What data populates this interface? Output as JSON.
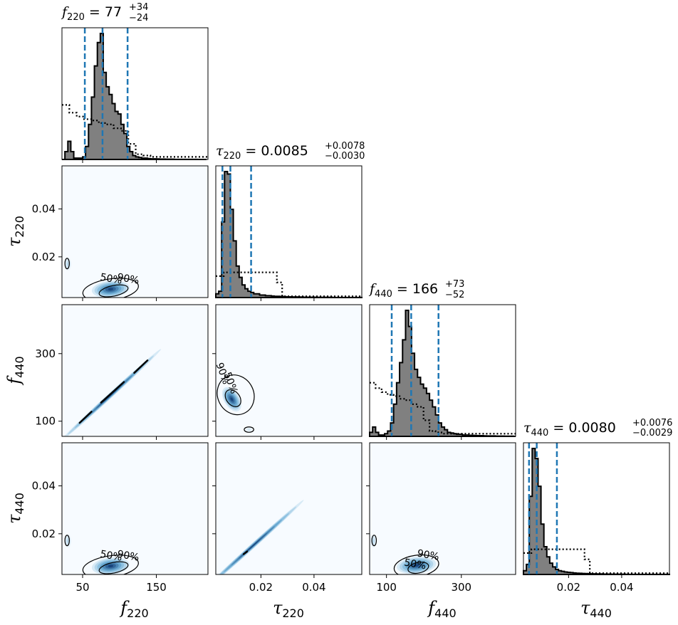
{
  "colors": {
    "hist_fill": "#808080",
    "hist_edge": "#000000",
    "quantile_line": "#1f77b4",
    "prior": "#000000",
    "density_low": "#f7fbff",
    "density_high": "#08306b"
  },
  "labels": {
    "f220": {
      "sym": "f",
      "sub": "220"
    },
    "tau220": {
      "sym": "τ",
      "sub": "220"
    },
    "f440": {
      "sym": "f",
      "sub": "440"
    },
    "tau440": {
      "sym": "τ",
      "sub": "440"
    }
  },
  "titles": {
    "f220": {
      "sym": "f",
      "sub": "220",
      "eq": " = ",
      "median": "77",
      "plus": "+34",
      "minus": "−24"
    },
    "tau220": {
      "sym": "τ",
      "sub": "220",
      "eq": " = ",
      "median": "0.0085",
      "plus": "+0.0078",
      "minus": "−0.0030"
    },
    "f440": {
      "sym": "f",
      "sub": "440",
      "eq": " = ",
      "median": "166",
      "plus": "+73",
      "minus": "−52"
    },
    "tau440": {
      "sym": "τ",
      "sub": "440",
      "eq": " = ",
      "median": "0.0080",
      "plus": "+0.0076",
      "minus": "−0.0029"
    }
  },
  "contour_levels": {
    "inner": "50%",
    "outer": "90%"
  },
  "chart_data": {
    "type": "corner",
    "parameters": [
      "f220",
      "tau220",
      "f440",
      "tau440"
    ],
    "ranges": {
      "f220": [
        22,
        220
      ],
      "tau220": [
        0.003,
        0.058
      ],
      "f440": [
        55,
        445
      ],
      "tau440": [
        0.003,
        0.058
      ]
    },
    "ticks": {
      "f220": [
        50,
        150
      ],
      "tau220": [
        0.02,
        0.04
      ],
      "f440": [
        100,
        300
      ],
      "tau440": [
        0.02,
        0.04
      ]
    },
    "tick_labels": {
      "f220": [
        "50",
        "150"
      ],
      "tau220": [
        "0.02",
        "0.04"
      ],
      "f440": [
        "100",
        "300"
      ],
      "tau440": [
        "0.02",
        "0.04"
      ]
    },
    "y_tick_labels": {
      "tau220": [
        "0.02",
        "0.04"
      ],
      "f440": [
        "100",
        "300"
      ],
      "tau440": [
        "0.02",
        "0.04"
      ]
    },
    "quantiles": {
      "f220": [
        53,
        77,
        111
      ],
      "tau220": [
        0.0055,
        0.0085,
        0.0163
      ],
      "f440": [
        114,
        166,
        239
      ],
      "tau440": [
        0.0051,
        0.008,
        0.0156
      ]
    },
    "histograms": {
      "f220": {
        "edges": [
          22,
          26,
          30,
          34,
          38,
          42,
          46,
          50,
          54,
          58,
          62,
          66,
          70,
          74,
          78,
          82,
          86,
          90,
          94,
          98,
          102,
          106,
          110,
          114,
          118,
          122,
          126,
          130,
          134,
          138,
          142,
          146,
          150,
          154,
          158,
          162,
          166,
          170,
          174,
          178,
          182,
          186,
          190,
          194,
          198,
          202,
          206,
          210,
          214,
          218
        ],
        "counts": [
          0,
          6,
          14,
          6,
          1,
          1,
          1,
          2,
          10,
          27,
          48,
          72,
          90,
          97,
          67,
          56,
          50,
          43,
          37,
          35,
          27,
          20,
          10,
          6,
          3,
          2,
          1.5,
          1,
          1,
          0.7,
          0.5,
          0.5,
          0.4,
          0.3,
          0.3,
          0.2,
          0.2,
          0.2,
          0.1,
          0.1,
          0.1,
          0.1,
          0.1,
          0.1,
          0.1,
          0.1,
          0,
          0,
          0
        ]
      },
      "tau220": {
        "edges": [
          0.003,
          0.0041,
          0.0052,
          0.0063,
          0.0074,
          0.0085,
          0.0096,
          0.0107,
          0.0118,
          0.0129,
          0.014,
          0.0151,
          0.0162,
          0.0173,
          0.0184,
          0.0195,
          0.0206,
          0.0217,
          0.0228,
          0.0239,
          0.025,
          0.0261,
          0.0272,
          0.0283,
          0.0294,
          0.0305,
          0.0316,
          0.0327,
          0.0338,
          0.0349,
          0.036,
          0.0371,
          0.0382,
          0.0393,
          0.0404,
          0.0415,
          0.0426,
          0.0437,
          0.0448,
          0.0459,
          0.047,
          0.0481,
          0.0492,
          0.0503,
          0.0514,
          0.0525,
          0.0536,
          0.0547,
          0.0558,
          0.058
        ],
        "counts": [
          3,
          5,
          60,
          100,
          98,
          70,
          45,
          25,
          16,
          10,
          7,
          5,
          4,
          3,
          3,
          2,
          2,
          1.5,
          1.5,
          1.2,
          1,
          1,
          0.8,
          0.8,
          0.6,
          0.6,
          0.5,
          0.5,
          0.4,
          0.4,
          0.3,
          0.3,
          0.3,
          0.3,
          0.2,
          0.2,
          0.2,
          0.2,
          0.2,
          0.2,
          0.1,
          0.1,
          0.1,
          0.1,
          0.1,
          0.1,
          0.1,
          0.1,
          0.1
        ]
      },
      "f440": {
        "edges": [
          55,
          63,
          71,
          79,
          87,
          95,
          103,
          111,
          119,
          127,
          135,
          143,
          151,
          159,
          167,
          175,
          183,
          191,
          199,
          207,
          215,
          223,
          231,
          239,
          247,
          255,
          263,
          271,
          279,
          287,
          295,
          303,
          311,
          319,
          327,
          335,
          343,
          351,
          359,
          367,
          375,
          383,
          391,
          399,
          407,
          415,
          423,
          431,
          439,
          445
        ],
        "counts": [
          3,
          7,
          3,
          1,
          1,
          2,
          4,
          10,
          24,
          40,
          55,
          72,
          94,
          82,
          62,
          50,
          44,
          39,
          36,
          32,
          27,
          22,
          16,
          10,
          7,
          5,
          3,
          2.5,
          2,
          1.5,
          1.5,
          1,
          1,
          0.8,
          0.7,
          0.6,
          0.5,
          0.5,
          0.4,
          0.3,
          0.3,
          0.3,
          0.2,
          0.2,
          0.2,
          0.1,
          0.1,
          0.1,
          0
        ]
      },
      "tau440": {
        "edges": [
          0.003,
          0.0041,
          0.0052,
          0.0063,
          0.0074,
          0.0085,
          0.0096,
          0.0107,
          0.0118,
          0.0129,
          0.014,
          0.0151,
          0.0162,
          0.0173,
          0.0184,
          0.0195,
          0.0206,
          0.0217,
          0.0228,
          0.0239,
          0.025,
          0.0261,
          0.0272,
          0.0283,
          0.0294,
          0.0305,
          0.0316,
          0.0327,
          0.0338,
          0.0349,
          0.036,
          0.0371,
          0.0382,
          0.0393,
          0.0404,
          0.0415,
          0.0426,
          0.0437,
          0.0448,
          0.0459,
          0.047,
          0.0481,
          0.0492,
          0.0503,
          0.0514,
          0.0525,
          0.0536,
          0.0547,
          0.0558,
          0.058
        ],
        "counts": [
          3,
          8,
          62,
          100,
          92,
          70,
          40,
          22,
          14,
          9,
          6,
          4,
          3,
          2.5,
          2,
          1.7,
          1.5,
          1.2,
          1,
          0.9,
          0.8,
          0.7,
          0.6,
          0.5,
          0.5,
          0.4,
          0.4,
          0.3,
          0.3,
          0.3,
          0.2,
          0.2,
          0.2,
          0.2,
          0.2,
          0.1,
          0.1,
          0.1,
          0.1,
          0.1,
          0.1,
          0.1,
          0.1,
          0.1,
          0.1,
          0.1,
          0.1,
          0.1,
          0.1
        ]
      }
    },
    "priors": {
      "f220": {
        "x": [
          22,
          32,
          32,
          42,
          42,
          52,
          52,
          62,
          62,
          72,
          72,
          82,
          82,
          92,
          92,
          102,
          102,
          112,
          112,
          122,
          122,
          132,
          132,
          142,
          142,
          220
        ],
        "y": [
          42,
          42,
          36,
          36,
          33,
          33,
          31,
          31,
          30,
          30,
          28,
          28,
          27,
          27,
          24,
          24,
          22,
          22,
          12,
          12,
          4,
          4,
          3,
          3,
          2,
          2
        ]
      },
      "tau220": {
        "x": [
          0.003,
          0.006,
          0.006,
          0.026,
          0.026,
          0.028,
          0.028,
          0.058
        ],
        "y": [
          17,
          17,
          20,
          20,
          12,
          12,
          1,
          1
        ]
      },
      "f440": {
        "x": [
          55,
          71,
          71,
          87,
          87,
          103,
          103,
          119,
          119,
          135,
          135,
          151,
          151,
          167,
          167,
          183,
          183,
          199,
          199,
          215,
          215,
          231,
          231,
          247,
          247,
          263,
          263,
          445
        ],
        "y": [
          40,
          40,
          36,
          36,
          33,
          33,
          31,
          31,
          30,
          30,
          28,
          28,
          27,
          27,
          24,
          24,
          22,
          22,
          12,
          12,
          4,
          4,
          3,
          3,
          2,
          2,
          2,
          2
        ]
      },
      "tau440": {
        "x": [
          0.003,
          0.006,
          0.006,
          0.026,
          0.026,
          0.028,
          0.028,
          0.058
        ],
        "y": [
          17,
          17,
          20,
          20,
          12,
          12,
          1,
          1
        ]
      }
    },
    "densities": [
      {
        "x": "f220",
        "y": "tau220",
        "blobs": [
          {
            "cx": 88,
            "cy": 0.0065,
            "sx": 16,
            "sy": 0.0022,
            "rot": -0.1,
            "amp": 1
          },
          {
            "cx": 30,
            "cy": 0.017,
            "sx": 3,
            "sy": 0.0018,
            "rot": 0,
            "amp": 0.25
          }
        ]
      },
      {
        "x": "f220",
        "y": "f440",
        "blobs": [
          {
            "cx": 88,
            "cy": 177,
            "sx": 28,
            "sy": 1.4,
            "rot": "diag",
            "amp": 1
          }
        ]
      },
      {
        "x": "tau220",
        "y": "f440",
        "blobs": [
          {
            "cx": 0.009,
            "cy": 165,
            "sx": 0.0018,
            "sy": 25,
            "rot": -0.55,
            "amp": 1
          },
          {
            "cx": 0.0155,
            "cy": 75,
            "sx": 0.0009,
            "sy": 4,
            "rot": 0,
            "amp": 0.15
          }
        ]
      },
      {
        "x": "f220",
        "y": "tau440",
        "blobs": [
          {
            "cx": 88,
            "cy": 0.0065,
            "sx": 16,
            "sy": 0.0022,
            "rot": -0.1,
            "amp": 1
          },
          {
            "cx": 30,
            "cy": 0.017,
            "sx": 3,
            "sy": 0.0018,
            "rot": 0,
            "amp": 0.25
          }
        ]
      },
      {
        "x": "tau220",
        "y": "tau440",
        "blobs": [
          {
            "cx": 0.017,
            "cy": 0.015,
            "sx": 0.009,
            "sy": 0.0004,
            "rot": "diag",
            "amp": 1
          }
        ]
      },
      {
        "x": "f440",
        "y": "tau440",
        "blobs": [
          {
            "cx": 180,
            "cy": 0.0068,
            "sx": 33,
            "sy": 0.0022,
            "rot": -0.1,
            "amp": 1
          },
          {
            "cx": 65,
            "cy": 0.017,
            "sx": 5,
            "sy": 0.0018,
            "rot": 0,
            "amp": 0.25
          }
        ]
      }
    ],
    "contours": [
      {
        "x": "f220",
        "y": "tau220",
        "outer": {
          "cx": 88,
          "cy": 0.0063,
          "rx": 38,
          "ry": 0.0045
        },
        "inner": {
          "cx": 92,
          "cy": 0.0058,
          "rx": 20,
          "ry": 0.0022
        },
        "extra": {
          "cx": 29,
          "cy": 0.0172,
          "rx": 3,
          "ry": 0.0022
        },
        "label50": [
          88,
          0.0095
        ],
        "label90": [
          111,
          0.0095
        ]
      },
      {
        "x": "f220",
        "y": "f440",
        "segments": [
          [
            [
              46,
              95
            ],
            [
              62,
              128
            ]
          ],
          [
            [
              75,
              155
            ],
            [
              106,
              216
            ]
          ],
          [
            [
              120,
              243
            ],
            [
              138,
              280
            ]
          ]
        ]
      },
      {
        "x": "tau220",
        "y": "f440",
        "outer": {
          "cx": 0.0105,
          "cy": 178,
          "rx": 0.0068,
          "ry": 60
        },
        "inner": {
          "cx": 0.0095,
          "cy": 168,
          "rx": 0.0025,
          "ry": 28
        },
        "extra": {
          "cx": 0.0155,
          "cy": 75,
          "rx": 0.0018,
          "ry": 8
        },
        "label50": [
          0.0075,
          210
        ],
        "label90": [
          0.0045,
          238
        ]
      },
      {
        "x": "f220",
        "y": "tau440",
        "outer": {
          "cx": 88,
          "cy": 0.0063,
          "rx": 38,
          "ry": 0.0045
        },
        "inner": {
          "cx": 92,
          "cy": 0.0058,
          "rx": 20,
          "ry": 0.0022
        },
        "extra": {
          "cx": 29,
          "cy": 0.0172,
          "rx": 3,
          "ry": 0.0022
        },
        "label50": [
          88,
          0.0095
        ],
        "label90": [
          111,
          0.0095
        ]
      },
      {
        "x": "tau220",
        "y": "tau440",
        "segments": [
          [
            [
              0.0135,
              0.0115
            ],
            [
              0.0148,
              0.0126
            ]
          ]
        ]
      },
      {
        "x": "f440",
        "y": "tau440",
        "outer": {
          "cx": 180,
          "cy": 0.0065,
          "rx": 60,
          "ry": 0.0045
        },
        "inner": {
          "cx": 185,
          "cy": 0.0058,
          "rx": 28,
          "ry": 0.0022
        },
        "extra": {
          "cx": 67,
          "cy": 0.0172,
          "rx": 6,
          "ry": 0.0022
        },
        "label50": [
          175,
          0.006
        ],
        "label90": [
          210,
          0.0098
        ]
      }
    ]
  }
}
